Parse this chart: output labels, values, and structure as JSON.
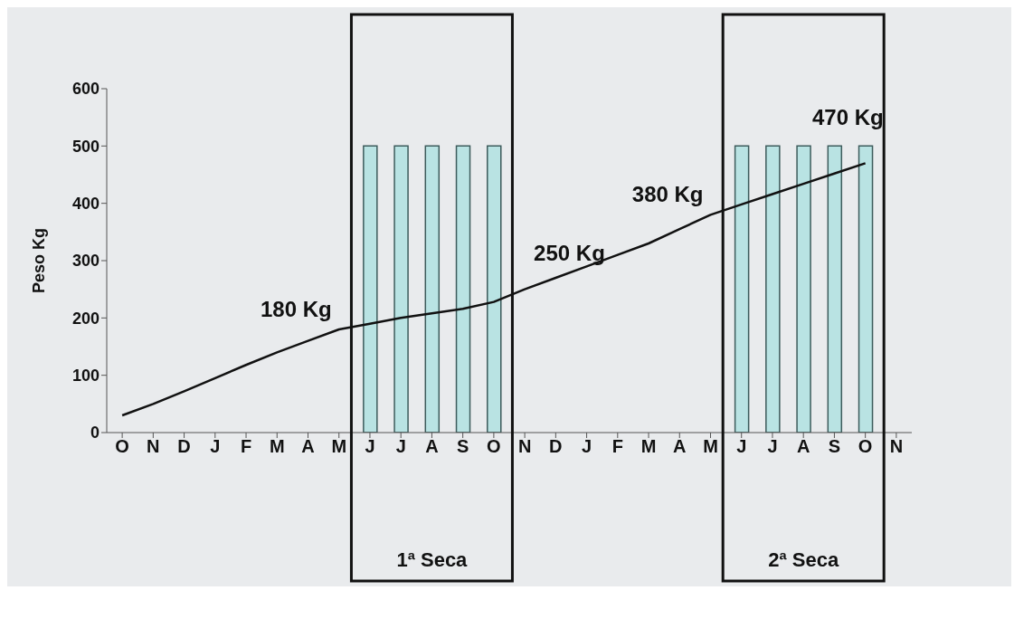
{
  "chart_data": {
    "type": "bar",
    "ylabel": "Peso Kg",
    "categories": [
      "O",
      "N",
      "D",
      "J",
      "F",
      "M",
      "A",
      "M",
      "J",
      "J",
      "A",
      "S",
      "O",
      "N",
      "D",
      "J",
      "F",
      "M",
      "A",
      "M",
      "J",
      "J",
      "A",
      "S",
      "O",
      "N"
    ],
    "ylim": [
      0,
      600
    ],
    "yticks": [
      0,
      100,
      200,
      300,
      400,
      500,
      600
    ],
    "marker": "none",
    "series": [
      {
        "color": "#b9e3e3",
        "values": [
          null,
          null,
          null,
          null,
          null,
          null,
          null,
          null,
          500,
          500,
          500,
          500,
          500,
          null,
          null,
          null,
          null,
          null,
          null,
          null,
          500,
          500,
          500,
          500,
          500,
          null
        ]
      },
      {
        "type": "line",
        "color": "#111111",
        "values": [
          30,
          50,
          72,
          95,
          118,
          140,
          160,
          180,
          190,
          200,
          208,
          216,
          228,
          250,
          270,
          290,
          310,
          330,
          355,
          380,
          398,
          416,
          434,
          452,
          470,
          null
        ],
        "value_labels": [
          null,
          null,
          null,
          null,
          null,
          null,
          null,
          "180 Kg",
          null,
          null,
          null,
          null,
          null,
          "250 Kg",
          null,
          null,
          null,
          null,
          null,
          "380 Kg",
          null,
          null,
          null,
          null,
          "470 Kg",
          null
        ]
      }
    ],
    "annotations": [
      "1ª Seca",
      "2ª Seca"
    ]
  }
}
